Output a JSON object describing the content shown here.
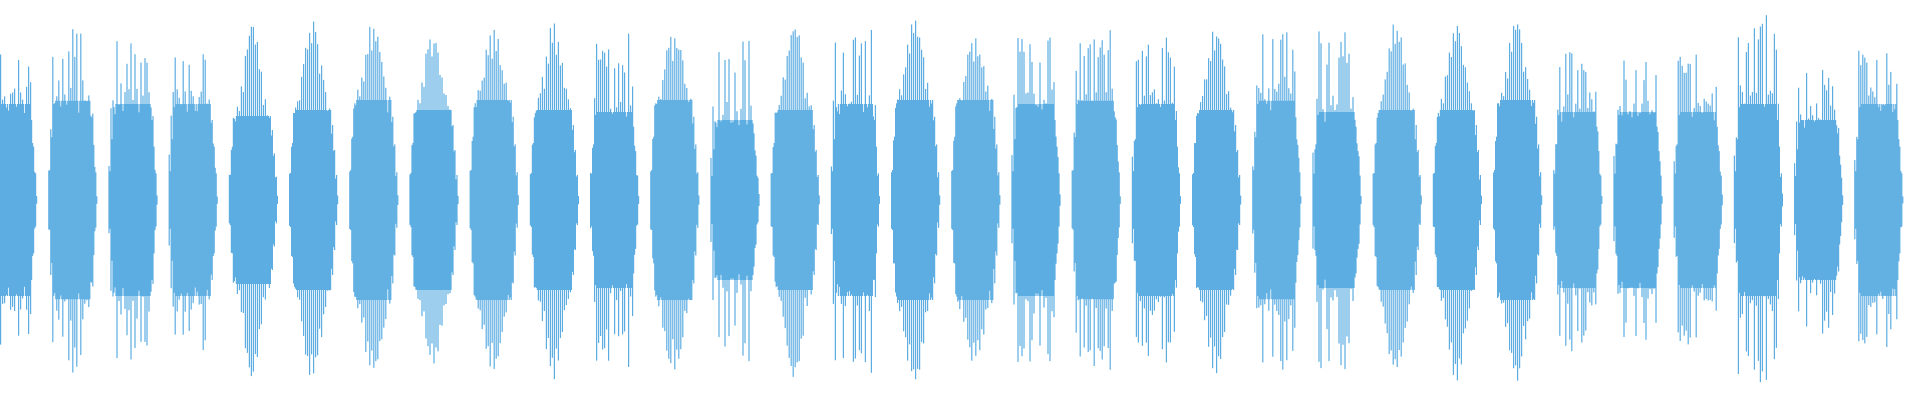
{
  "waveform": {
    "color": "#5dade2",
    "background": "#ffffff",
    "bursts": [
      {
        "shape": "spiky",
        "peak": 0.78,
        "body": 0.6
      },
      {
        "shape": "spiky",
        "peak": 0.89,
        "body": 0.62
      },
      {
        "shape": "spiky",
        "peak": 0.89,
        "body": 0.6
      },
      {
        "shape": "spiky",
        "peak": 0.83,
        "body": 0.6
      },
      {
        "shape": "bell",
        "peak": 0.89,
        "body": 0.42
      },
      {
        "shape": "bell",
        "peak": 0.91,
        "body": 0.45
      },
      {
        "shape": "bell",
        "peak": 0.9,
        "body": 0.5
      },
      {
        "shape": "bell",
        "peak": 0.85,
        "body": 0.45
      },
      {
        "shape": "bell",
        "peak": 0.87,
        "body": 0.5
      },
      {
        "shape": "bell",
        "peak": 0.91,
        "body": 0.45
      },
      {
        "shape": "spiky",
        "peak": 0.87,
        "body": 0.55
      },
      {
        "shape": "bell",
        "peak": 0.88,
        "body": 0.5
      },
      {
        "shape": "spiky",
        "peak": 0.83,
        "body": 0.5
      },
      {
        "shape": "bell",
        "peak": 0.91,
        "body": 0.45
      },
      {
        "shape": "spiky",
        "peak": 0.91,
        "body": 0.6
      },
      {
        "shape": "bell",
        "peak": 0.93,
        "body": 0.5
      },
      {
        "shape": "bell",
        "peak": 0.83,
        "body": 0.5
      },
      {
        "shape": "spiky",
        "peak": 0.85,
        "body": 0.6
      },
      {
        "shape": "spiky",
        "peak": 0.87,
        "body": 0.62
      },
      {
        "shape": "spiky",
        "peak": 0.85,
        "body": 0.6
      },
      {
        "shape": "bell",
        "peak": 0.88,
        "body": 0.45
      },
      {
        "shape": "spiky",
        "peak": 0.91,
        "body": 0.62
      },
      {
        "shape": "spiky",
        "peak": 0.89,
        "body": 0.55
      },
      {
        "shape": "bell",
        "peak": 0.91,
        "body": 0.45
      },
      {
        "shape": "bell",
        "peak": 0.91,
        "body": 0.45
      },
      {
        "shape": "bell",
        "peak": 0.91,
        "body": 0.5
      },
      {
        "shape": "spiky",
        "peak": 0.78,
        "body": 0.55
      },
      {
        "shape": "spiky",
        "peak": 0.77,
        "body": 0.55
      },
      {
        "shape": "spiky",
        "peak": 0.75,
        "body": 0.55
      },
      {
        "shape": "spiky",
        "peak": 0.94,
        "body": 0.6
      },
      {
        "shape": "spiky",
        "peak": 0.72,
        "body": 0.5
      },
      {
        "shape": "spiky",
        "peak": 0.78,
        "body": 0.6
      }
    ]
  }
}
